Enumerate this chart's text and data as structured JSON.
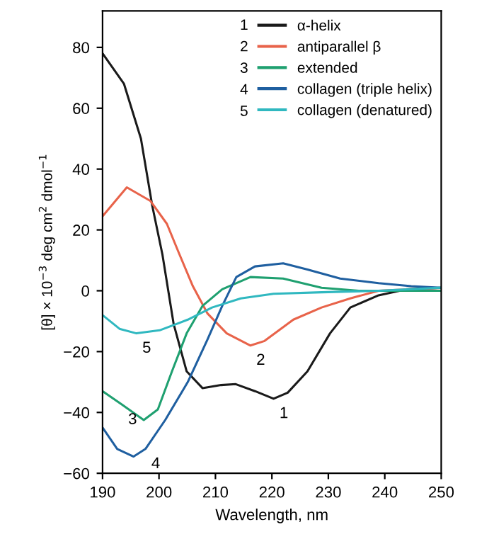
{
  "chart_data": {
    "type": "line",
    "xlabel": "Wavelength, nm",
    "ylabel": "[θ] × 10$^{−3}$ deg cm$^{2}$ dmol$^{−1}$",
    "xlim": [
      190,
      250
    ],
    "xticks": [
      190,
      200,
      210,
      220,
      230,
      240,
      250
    ],
    "ylim": [
      -60,
      92
    ],
    "yticks": [
      -60,
      -40,
      -20,
      0,
      20,
      40,
      60,
      80
    ],
    "grid": false,
    "legend": "top right",
    "marker": "none",
    "line_style": "solid",
    "series": [
      {
        "name": "α-helix",
        "color": "#1a1a1a",
        "x": [
          190,
          193.8,
          196.8,
          198.8,
          200.6,
          202.6,
          204.9,
          207.7,
          211,
          213.6,
          217,
          220.3,
          222.8,
          226.3,
          230.3,
          233.9,
          238.9,
          243.9,
          250
        ],
        "values": [
          78,
          68,
          50,
          28,
          12,
          -11,
          -26.5,
          -32,
          -31,
          -30.7,
          -33,
          -35.5,
          -33.5,
          -26.5,
          -14,
          -5.5,
          -1.5,
          0.5,
          1
        ]
      },
      {
        "name": "antiparallel β",
        "color": "#e8634a",
        "x": [
          190,
          194.3,
          198.5,
          201.4,
          203.5,
          206,
          208.6,
          212,
          216.2,
          218.7,
          223.8,
          228.8,
          233.9,
          238.9,
          244.7,
          250
        ],
        "values": [
          24.5,
          34,
          29.5,
          22,
          12.5,
          1.5,
          -7.5,
          -14,
          -18,
          -16.5,
          -9.5,
          -5.5,
          -2.5,
          0,
          0.5,
          0
        ]
      },
      {
        "name": "extended",
        "color": "#1fa070",
        "x": [
          190,
          193.5,
          197.3,
          199.8,
          202.3,
          204.9,
          207.7,
          211.2,
          216.2,
          222,
          228.8,
          235.4,
          244.7,
          250
        ],
        "values": [
          -33,
          -37.5,
          -42.5,
          -39,
          -26.5,
          -14,
          -5,
          0.5,
          4.5,
          4,
          1,
          0,
          0,
          0
        ]
      },
      {
        "name": "collagen (triple helix)",
        "color": "#1f5fa0",
        "x": [
          190,
          192.6,
          195.5,
          197.6,
          201.1,
          205.1,
          208.6,
          211.2,
          213.7,
          217,
          222,
          226.3,
          232.1,
          238.9,
          244.7,
          250
        ],
        "values": [
          -45,
          -52,
          -54.5,
          -52,
          -42.5,
          -30,
          -16,
          -5,
          4.5,
          8,
          9,
          7,
          4,
          2.5,
          1.5,
          1
        ]
      },
      {
        "name": "collagen (denatured)",
        "color": "#30b8c0",
        "x": [
          190,
          193,
          196,
          200.1,
          205.1,
          209.4,
          214.5,
          220.3,
          228.8,
          238.9,
          250
        ],
        "values": [
          -8,
          -12.5,
          -14,
          -13,
          -9.5,
          -5.5,
          -2.5,
          -1,
          -0.5,
          0,
          1
        ]
      }
    ],
    "annotations": [
      {
        "text": "1",
        "x": 220.3,
        "y": -35.5
      },
      {
        "text": "2",
        "x": 216.2,
        "y": -18
      },
      {
        "text": "3",
        "x": 193.5,
        "y": -37.5
      },
      {
        "text": "4",
        "x": 197.6,
        "y": -52
      },
      {
        "text": "5",
        "x": 196,
        "y": -14
      }
    ]
  }
}
